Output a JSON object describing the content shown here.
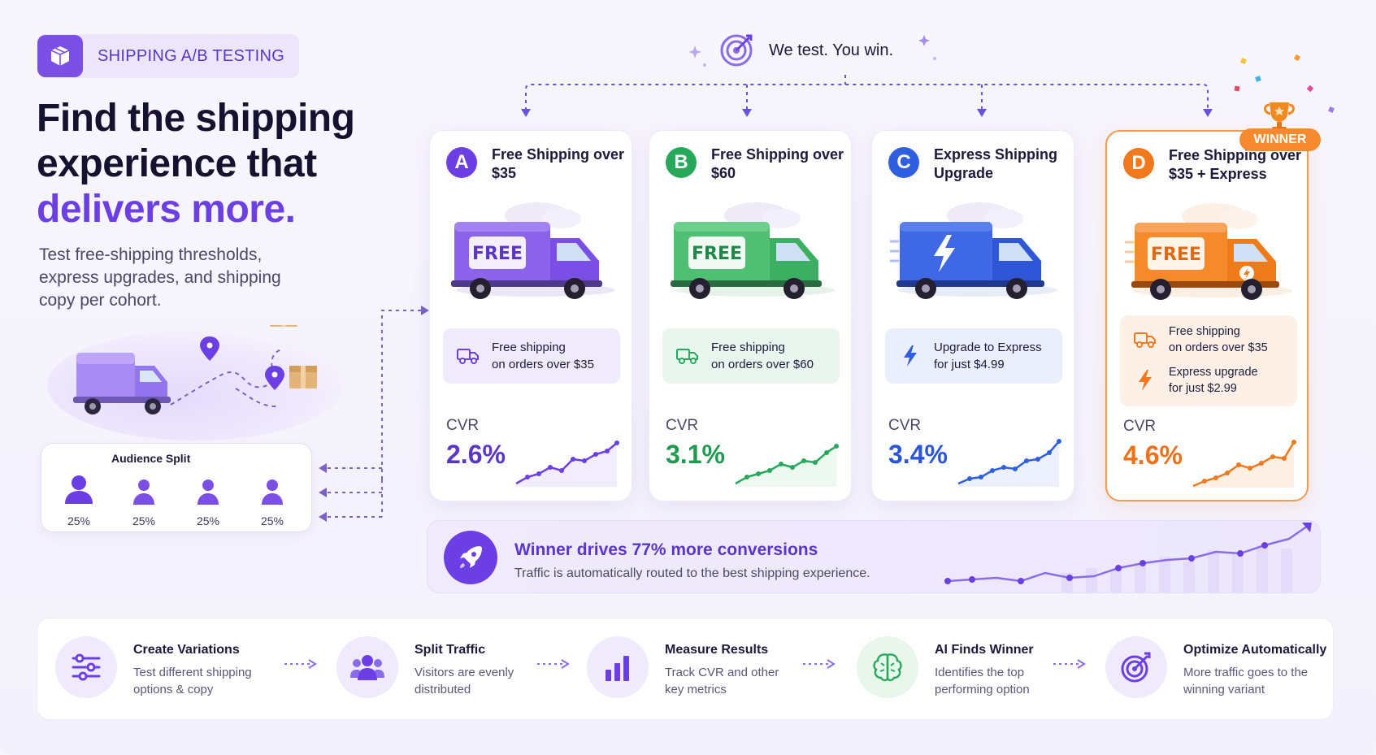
{
  "header": {
    "pill_label": "SHIPPING A/B TESTING"
  },
  "hero": {
    "line1": "Find the shipping",
    "line2": "experience that",
    "accent": "delivers more.",
    "subtitle": "Test free-shipping thresholds, express upgrades, and shipping copy per cohort."
  },
  "tagline": "We test. You win.",
  "audience": {
    "title": "Audience Split",
    "cohorts": [
      "25%",
      "25%",
      "25%",
      "25%"
    ]
  },
  "winner_badge": "WINNER",
  "variants": [
    {
      "letter": "A",
      "name": "Free Shipping over $35",
      "truck_text": "FREE",
      "feature_lines": [
        "Free shipping",
        "on orders over $35"
      ],
      "cvr_label": "CVR",
      "cvr": "2.6%",
      "color": "#6b3fe3"
    },
    {
      "letter": "B",
      "name": "Free Shipping over $60",
      "truck_text": "FREE",
      "feature_lines": [
        "Free shipping",
        "on orders over $60"
      ],
      "cvr_label": "CVR",
      "cvr": "3.1%",
      "color": "#27a85a"
    },
    {
      "letter": "C",
      "name": "Express Shipping Upgrade",
      "truck_text": "",
      "feature_lines": [
        "Upgrade to Express",
        "for just $4.99"
      ],
      "cvr_label": "CVR",
      "cvr": "3.4%",
      "color": "#2f5fe0"
    },
    {
      "letter": "D",
      "name": "Free Shipping over $35 + Express",
      "truck_text": "FREE",
      "feature_lines": [
        "Free shipping",
        "on orders over $35"
      ],
      "feature2_lines": [
        "Express upgrade",
        "for just $2.99"
      ],
      "cvr_label": "CVR",
      "cvr": "4.6%",
      "color": "#f2781e"
    }
  ],
  "banner": {
    "headline": "Winner drives 77% more conversions",
    "subtext": "Traffic is automatically routed to the best shipping experience."
  },
  "steps": [
    {
      "title": "Create Variations",
      "desc": "Test different shipping options & copy",
      "icon": "sliders-icon"
    },
    {
      "title": "Split Traffic",
      "desc": "Visitors are evenly distributed",
      "icon": "users-icon"
    },
    {
      "title": "Measure Results",
      "desc": "Track CVR and other key metrics",
      "icon": "bar-chart-icon"
    },
    {
      "title": "AI Finds Winner",
      "desc": "Identifies the top performing option",
      "icon": "brain-icon"
    },
    {
      "title": "Optimize Automatically",
      "desc": "More traffic goes to the winning variant",
      "icon": "target-icon"
    }
  ]
}
